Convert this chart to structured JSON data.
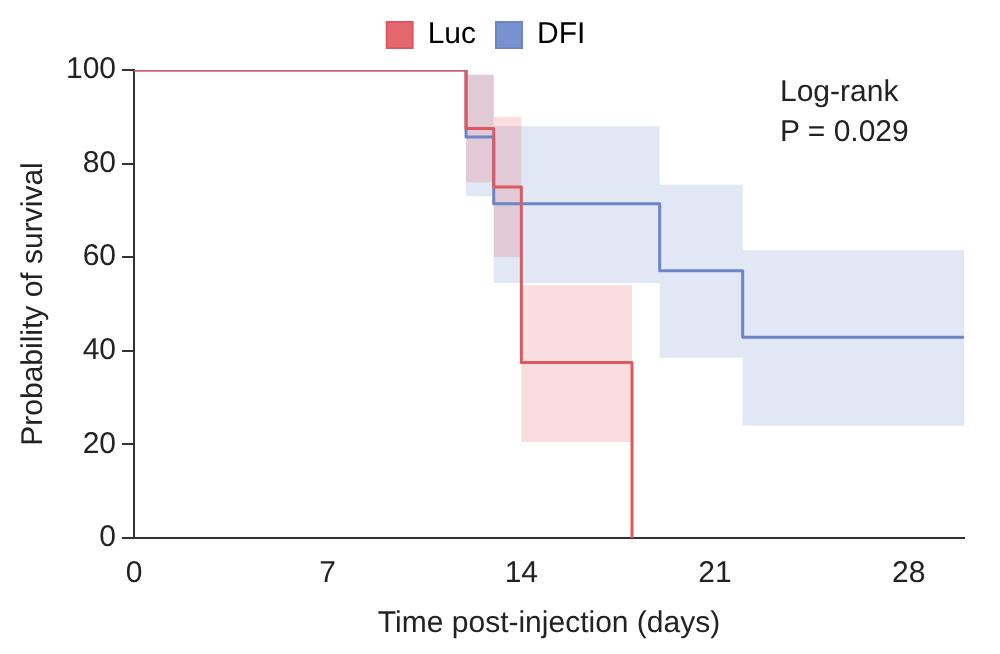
{
  "chart_data": {
    "type": "step",
    "xlabel": "Time post-injection (days)",
    "ylabel": "Probability of survival",
    "xlim": [
      0,
      30
    ],
    "xticks": [
      0,
      7,
      14,
      21,
      28
    ],
    "ylim": [
      0,
      100
    ],
    "yticks": [
      0,
      20,
      40,
      60,
      80,
      100
    ],
    "grid": false,
    "legend": "top",
    "marker": "none",
    "line_style": "solid",
    "annotations": [
      "Log-rank",
      "P = 0.029"
    ],
    "series": [
      {
        "name": "Luc",
        "color": "#e0575d",
        "x": [
          0,
          12,
          13,
          14,
          18
        ],
        "values": [
          100,
          87.5,
          75,
          37.5,
          0
        ],
        "lower": [
          null,
          76,
          60,
          20.5,
          20.5
        ],
        "upper": [
          null,
          99,
          90,
          54,
          54
        ]
      },
      {
        "name": "DFI",
        "color": "#6a86c9",
        "x": [
          0,
          12,
          13,
          19,
          22,
          30
        ],
        "values": [
          100,
          85.7,
          71.4,
          57.1,
          42.9,
          42.9
        ],
        "lower": [
          null,
          73,
          54.5,
          38.5,
          24,
          24
        ],
        "upper": [
          null,
          99,
          88,
          75.5,
          61.5,
          61.5
        ]
      }
    ]
  }
}
